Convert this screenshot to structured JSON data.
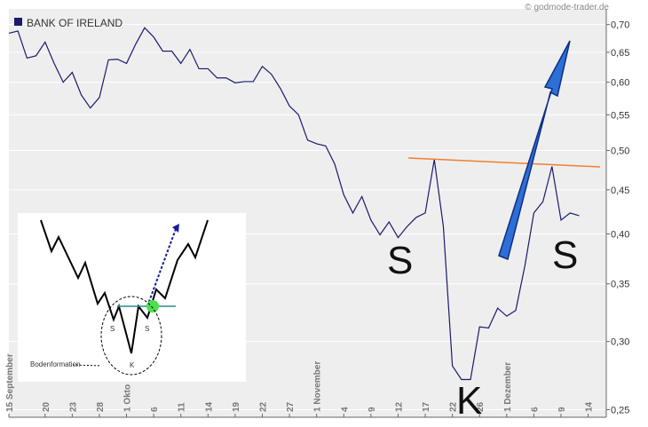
{
  "chart_data": {
    "type": "line",
    "title": "BANK OF IRELAND",
    "source": "© godmode-trader.de",
    "x": [
      0,
      1,
      2,
      3,
      4,
      5,
      6,
      7,
      8,
      9,
      10,
      11,
      12,
      13,
      14,
      15,
      16,
      17,
      18,
      19,
      20,
      21,
      22,
      23,
      24,
      25,
      26,
      27,
      28,
      29,
      30,
      31,
      32,
      33,
      34,
      35,
      36,
      37,
      38,
      39,
      40,
      41,
      42,
      43,
      44,
      45,
      46,
      47,
      48,
      49,
      50,
      51,
      52,
      53,
      54,
      55,
      56,
      57,
      58,
      59,
      60,
      61,
      62,
      63
    ],
    "series": [
      {
        "name": "BANK OF IRELAND",
        "color": "#1a1a6e",
        "values": [
          0.684,
          0.688,
          0.64,
          0.644,
          0.668,
          0.631,
          0.6,
          0.616,
          0.58,
          0.56,
          0.576,
          0.637,
          0.638,
          0.631,
          0.664,
          0.694,
          0.677,
          0.652,
          0.652,
          0.631,
          0.655,
          0.622,
          0.622,
          0.607,
          0.607,
          0.599,
          0.601,
          0.601,
          0.626,
          0.613,
          0.59,
          0.563,
          0.55,
          0.514,
          0.509,
          0.506,
          0.482,
          0.444,
          0.423,
          0.442,
          0.415,
          0.399,
          0.413,
          0.396,
          0.408,
          0.418,
          0.423,
          0.488,
          0.408,
          0.281,
          0.271,
          0.271,
          0.312,
          0.311,
          0.328,
          0.321,
          0.326,
          0.367,
          0.423,
          0.436,
          0.479,
          0.415,
          0.423,
          0.42
        ]
      }
    ],
    "xlim": [
      0,
      66
    ],
    "xticks": [
      {
        "value": 0,
        "label": "15 September"
      },
      {
        "value": 4,
        "label": "20"
      },
      {
        "value": 7,
        "label": "23"
      },
      {
        "value": 10,
        "label": "28"
      },
      {
        "value": 13,
        "label": "1 Okto"
      },
      {
        "value": 16,
        "label": "6"
      },
      {
        "value": 19,
        "label": "11"
      },
      {
        "value": 22,
        "label": "14"
      },
      {
        "value": 25,
        "label": "19"
      },
      {
        "value": 28,
        "label": "22"
      },
      {
        "value": 31,
        "label": "27"
      },
      {
        "value": 34,
        "label": "1 November"
      },
      {
        "value": 37,
        "label": "4"
      },
      {
        "value": 40,
        "label": "9"
      },
      {
        "value": 43,
        "label": "12"
      },
      {
        "value": 46,
        "label": "17"
      },
      {
        "value": 49,
        "label": "22"
      },
      {
        "value": 52,
        "label": "26"
      },
      {
        "value": 55,
        "label": "1 Dezember"
      },
      {
        "value": 58,
        "label": "6"
      },
      {
        "value": 61,
        "label": "9"
      },
      {
        "value": 64,
        "label": "14"
      }
    ],
    "ylim": [
      0.245,
      0.73
    ],
    "log_y": true,
    "grid": true,
    "yticks": [
      {
        "value": 0.25,
        "label": "0,25"
      },
      {
        "value": 0.3,
        "label": "0,30"
      },
      {
        "value": 0.35,
        "label": "0,35"
      },
      {
        "value": 0.4,
        "label": "0,40"
      },
      {
        "value": 0.45,
        "label": "0,45"
      },
      {
        "value": 0.5,
        "label": "0,50"
      },
      {
        "value": 0.55,
        "label": "0,55"
      },
      {
        "value": 0.6,
        "label": "0,60"
      },
      {
        "value": 0.65,
        "label": "0,65"
      },
      {
        "value": 0.7,
        "label": "0,70"
      }
    ],
    "annotations": [
      "S",
      "K",
      "S"
    ],
    "inset": {
      "labels": [
        "S",
        "S",
        "K"
      ],
      "caption": "Bodenformation"
    }
  }
}
